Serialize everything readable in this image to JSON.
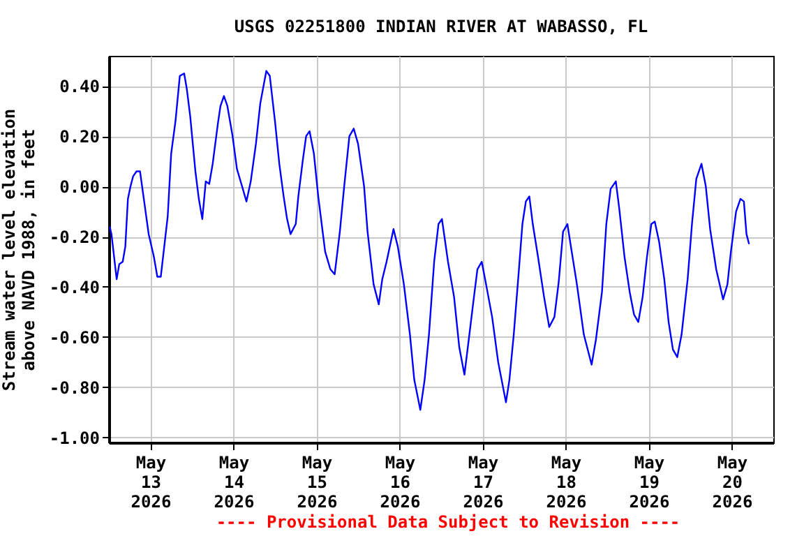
{
  "chart_data": {
    "type": "line",
    "title": "USGS 02251800 INDIAN RIVER AT WABASSO, FL",
    "ylabel": "Stream water level elevation above NAVD 1988, in feet",
    "annotations": [
      "---- Provisional Data Subject to Revision ----"
    ],
    "xlim": [
      "2026-05-12T12:00",
      "2026-05-20T12:00"
    ],
    "xticks": [
      {
        "value": "2026-05-13",
        "label": "May\n13\n2026"
      },
      {
        "value": "2026-05-14",
        "label": "May\n14\n2026"
      },
      {
        "value": "2026-05-15",
        "label": "May\n15\n2026"
      },
      {
        "value": "2026-05-16",
        "label": "May\n16\n2026"
      },
      {
        "value": "2026-05-17",
        "label": "May\n17\n2026"
      },
      {
        "value": "2026-05-18",
        "label": "May\n18\n2026"
      },
      {
        "value": "2026-05-19",
        "label": "May\n19\n2026"
      },
      {
        "value": "2026-05-20",
        "label": "May\n20\n2026"
      }
    ],
    "ylim": [
      -1.02,
      0.52
    ],
    "yticks": [
      {
        "value": -1.0,
        "label": "-1.00"
      },
      {
        "value": -0.8,
        "label": "-0.80"
      },
      {
        "value": -0.6,
        "label": "-0.60"
      },
      {
        "value": -0.4,
        "label": "-0.40"
      },
      {
        "value": -0.2,
        "label": "-0.20"
      },
      {
        "value": 0,
        "label": "0.00"
      },
      {
        "value": 0.2,
        "label": "0.20"
      },
      {
        "value": 0.4,
        "label": "0.40"
      }
    ],
    "grid": true,
    "series": [
      {
        "color": "#0000ff",
        "x": [
          "2026-05-12T12:15",
          "2026-05-12T12:45",
          "2026-05-12T14:15",
          "2026-05-12T15:00",
          "2026-05-12T16:00",
          "2026-05-12T16:45",
          "2026-05-12T17:30",
          "2026-05-12T18:15",
          "2026-05-12T19:00",
          "2026-05-12T20:00",
          "2026-05-12T21:00",
          "2026-05-12T22:00",
          "2026-05-12T23:30",
          "2026-05-13T01:00",
          "2026-05-13T02:00",
          "2026-05-13T03:00",
          "2026-05-13T04:00",
          "2026-05-13T05:00",
          "2026-05-13T06:00",
          "2026-05-13T07:15",
          "2026-05-13T08:30",
          "2026-05-13T09:45",
          "2026-05-13T10:30",
          "2026-05-13T11:30",
          "2026-05-13T13:00",
          "2026-05-13T14:00",
          "2026-05-13T15:00",
          "2026-05-13T16:00",
          "2026-05-13T17:00",
          "2026-05-13T18:00",
          "2026-05-13T19:30",
          "2026-05-13T20:15",
          "2026-05-13T21:15",
          "2026-05-13T22:15",
          "2026-05-13T23:45",
          "2026-05-14T01:00",
          "2026-05-14T02:30",
          "2026-05-14T03:45",
          "2026-05-14T05:00",
          "2026-05-14T06:30",
          "2026-05-14T07:45",
          "2026-05-14T09:30",
          "2026-05-14T10:30",
          "2026-05-14T12:00",
          "2026-05-14T13:15",
          "2026-05-14T14:30",
          "2026-05-14T15:30",
          "2026-05-14T16:30",
          "2026-05-14T18:00",
          "2026-05-14T18:45",
          "2026-05-14T20:00",
          "2026-05-14T21:00",
          "2026-05-14T22:00",
          "2026-05-14T23:15",
          "2026-05-15T00:30",
          "2026-05-15T02:30",
          "2026-05-15T04:00",
          "2026-05-15T05:15",
          "2026-05-15T06:45",
          "2026-05-15T08:00",
          "2026-05-15T09:30",
          "2026-05-15T10:45",
          "2026-05-15T12:00",
          "2026-05-15T13:45",
          "2026-05-15T14:45",
          "2026-05-15T16:30",
          "2026-05-15T18:00",
          "2026-05-15T19:00",
          "2026-05-15T20:15",
          "2026-05-15T22:15",
          "2026-05-15T23:30",
          "2026-05-16T01:15",
          "2026-05-16T03:00",
          "2026-05-16T04:15",
          "2026-05-16T06:00",
          "2026-05-16T07:15",
          "2026-05-16T08:30",
          "2026-05-16T10:00",
          "2026-05-16T11:15",
          "2026-05-16T12:15",
          "2026-05-16T14:00",
          "2026-05-16T15:45",
          "2026-05-16T17:15",
          "2026-05-16T18:45",
          "2026-05-16T20:00",
          "2026-05-16T21:30",
          "2026-05-16T22:30",
          "2026-05-16T23:45",
          "2026-05-17T01:00",
          "2026-05-17T02:45",
          "2026-05-17T04:30",
          "2026-05-17T06:45",
          "2026-05-17T07:45",
          "2026-05-17T09:00",
          "2026-05-17T10:30",
          "2026-05-17T11:30",
          "2026-05-17T12:30",
          "2026-05-17T13:30",
          "2026-05-17T14:30",
          "2026-05-17T16:00",
          "2026-05-17T17:45",
          "2026-05-17T19:15",
          "2026-05-17T20:45",
          "2026-05-17T22:00",
          "2026-05-17T23:15",
          "2026-05-18T00:30",
          "2026-05-18T01:45",
          "2026-05-18T03:15",
          "2026-05-18T05:15",
          "2026-05-18T07:30",
          "2026-05-18T08:45",
          "2026-05-18T10:30",
          "2026-05-18T11:45",
          "2026-05-18T13:00",
          "2026-05-18T14:30",
          "2026-05-18T15:30",
          "2026-05-18T17:00",
          "2026-05-18T18:30",
          "2026-05-18T19:45",
          "2026-05-18T21:00",
          "2026-05-18T22:15",
          "2026-05-18T23:30",
          "2026-05-19T00:45",
          "2026-05-19T01:45",
          "2026-05-19T03:00",
          "2026-05-19T04:30",
          "2026-05-19T05:45",
          "2026-05-19T07:00",
          "2026-05-19T08:15",
          "2026-05-19T09:30",
          "2026-05-19T11:15",
          "2026-05-19T12:30",
          "2026-05-19T13:45",
          "2026-05-19T15:15",
          "2026-05-19T16:30",
          "2026-05-19T17:45",
          "2026-05-19T19:30",
          "2026-05-19T21:30",
          "2026-05-19T22:45",
          "2026-05-19T23:45",
          "2026-05-20T01:15",
          "2026-05-20T02:30",
          "2026-05-20T03:30",
          "2026-05-20T04:15",
          "2026-05-20T05:00"
        ],
        "values": [
          -0.16,
          -0.19,
          -0.37,
          -0.31,
          -0.3,
          -0.24,
          -0.05,
          0.0,
          0.04,
          0.06,
          0.06,
          -0.04,
          -0.19,
          -0.28,
          -0.36,
          -0.36,
          -0.24,
          -0.12,
          0.13,
          0.26,
          0.44,
          0.45,
          0.39,
          0.28,
          0.06,
          -0.05,
          -0.13,
          0.02,
          0.01,
          0.09,
          0.25,
          0.32,
          0.36,
          0.32,
          0.2,
          0.07,
          0.0,
          -0.06,
          0.02,
          0.17,
          0.33,
          0.46,
          0.44,
          0.26,
          0.09,
          -0.04,
          -0.13,
          -0.19,
          -0.15,
          -0.04,
          0.1,
          0.2,
          0.22,
          0.13,
          -0.04,
          -0.26,
          -0.33,
          -0.35,
          -0.18,
          0.0,
          0.2,
          0.23,
          0.17,
          0.0,
          -0.18,
          -0.39,
          -0.47,
          -0.37,
          -0.3,
          -0.17,
          -0.24,
          -0.39,
          -0.59,
          -0.77,
          -0.89,
          -0.77,
          -0.59,
          -0.3,
          -0.15,
          -0.13,
          -0.3,
          -0.44,
          -0.64,
          -0.75,
          -0.61,
          -0.44,
          -0.33,
          -0.3,
          -0.39,
          -0.52,
          -0.7,
          -0.86,
          -0.77,
          -0.59,
          -0.33,
          -0.15,
          -0.06,
          -0.04,
          -0.15,
          -0.28,
          -0.44,
          -0.56,
          -0.52,
          -0.38,
          -0.18,
          -0.15,
          -0.26,
          -0.39,
          -0.59,
          -0.71,
          -0.61,
          -0.42,
          -0.15,
          -0.01,
          0.02,
          -0.09,
          -0.28,
          -0.42,
          -0.51,
          -0.54,
          -0.44,
          -0.28,
          -0.15,
          -0.14,
          -0.22,
          -0.37,
          -0.54,
          -0.65,
          -0.68,
          -0.59,
          -0.37,
          -0.15,
          0.03,
          0.09,
          0.0,
          -0.17,
          -0.33,
          -0.45,
          -0.39,
          -0.26,
          -0.1,
          -0.05,
          -0.06,
          -0.19,
          -0.23
        ]
      }
    ]
  }
}
